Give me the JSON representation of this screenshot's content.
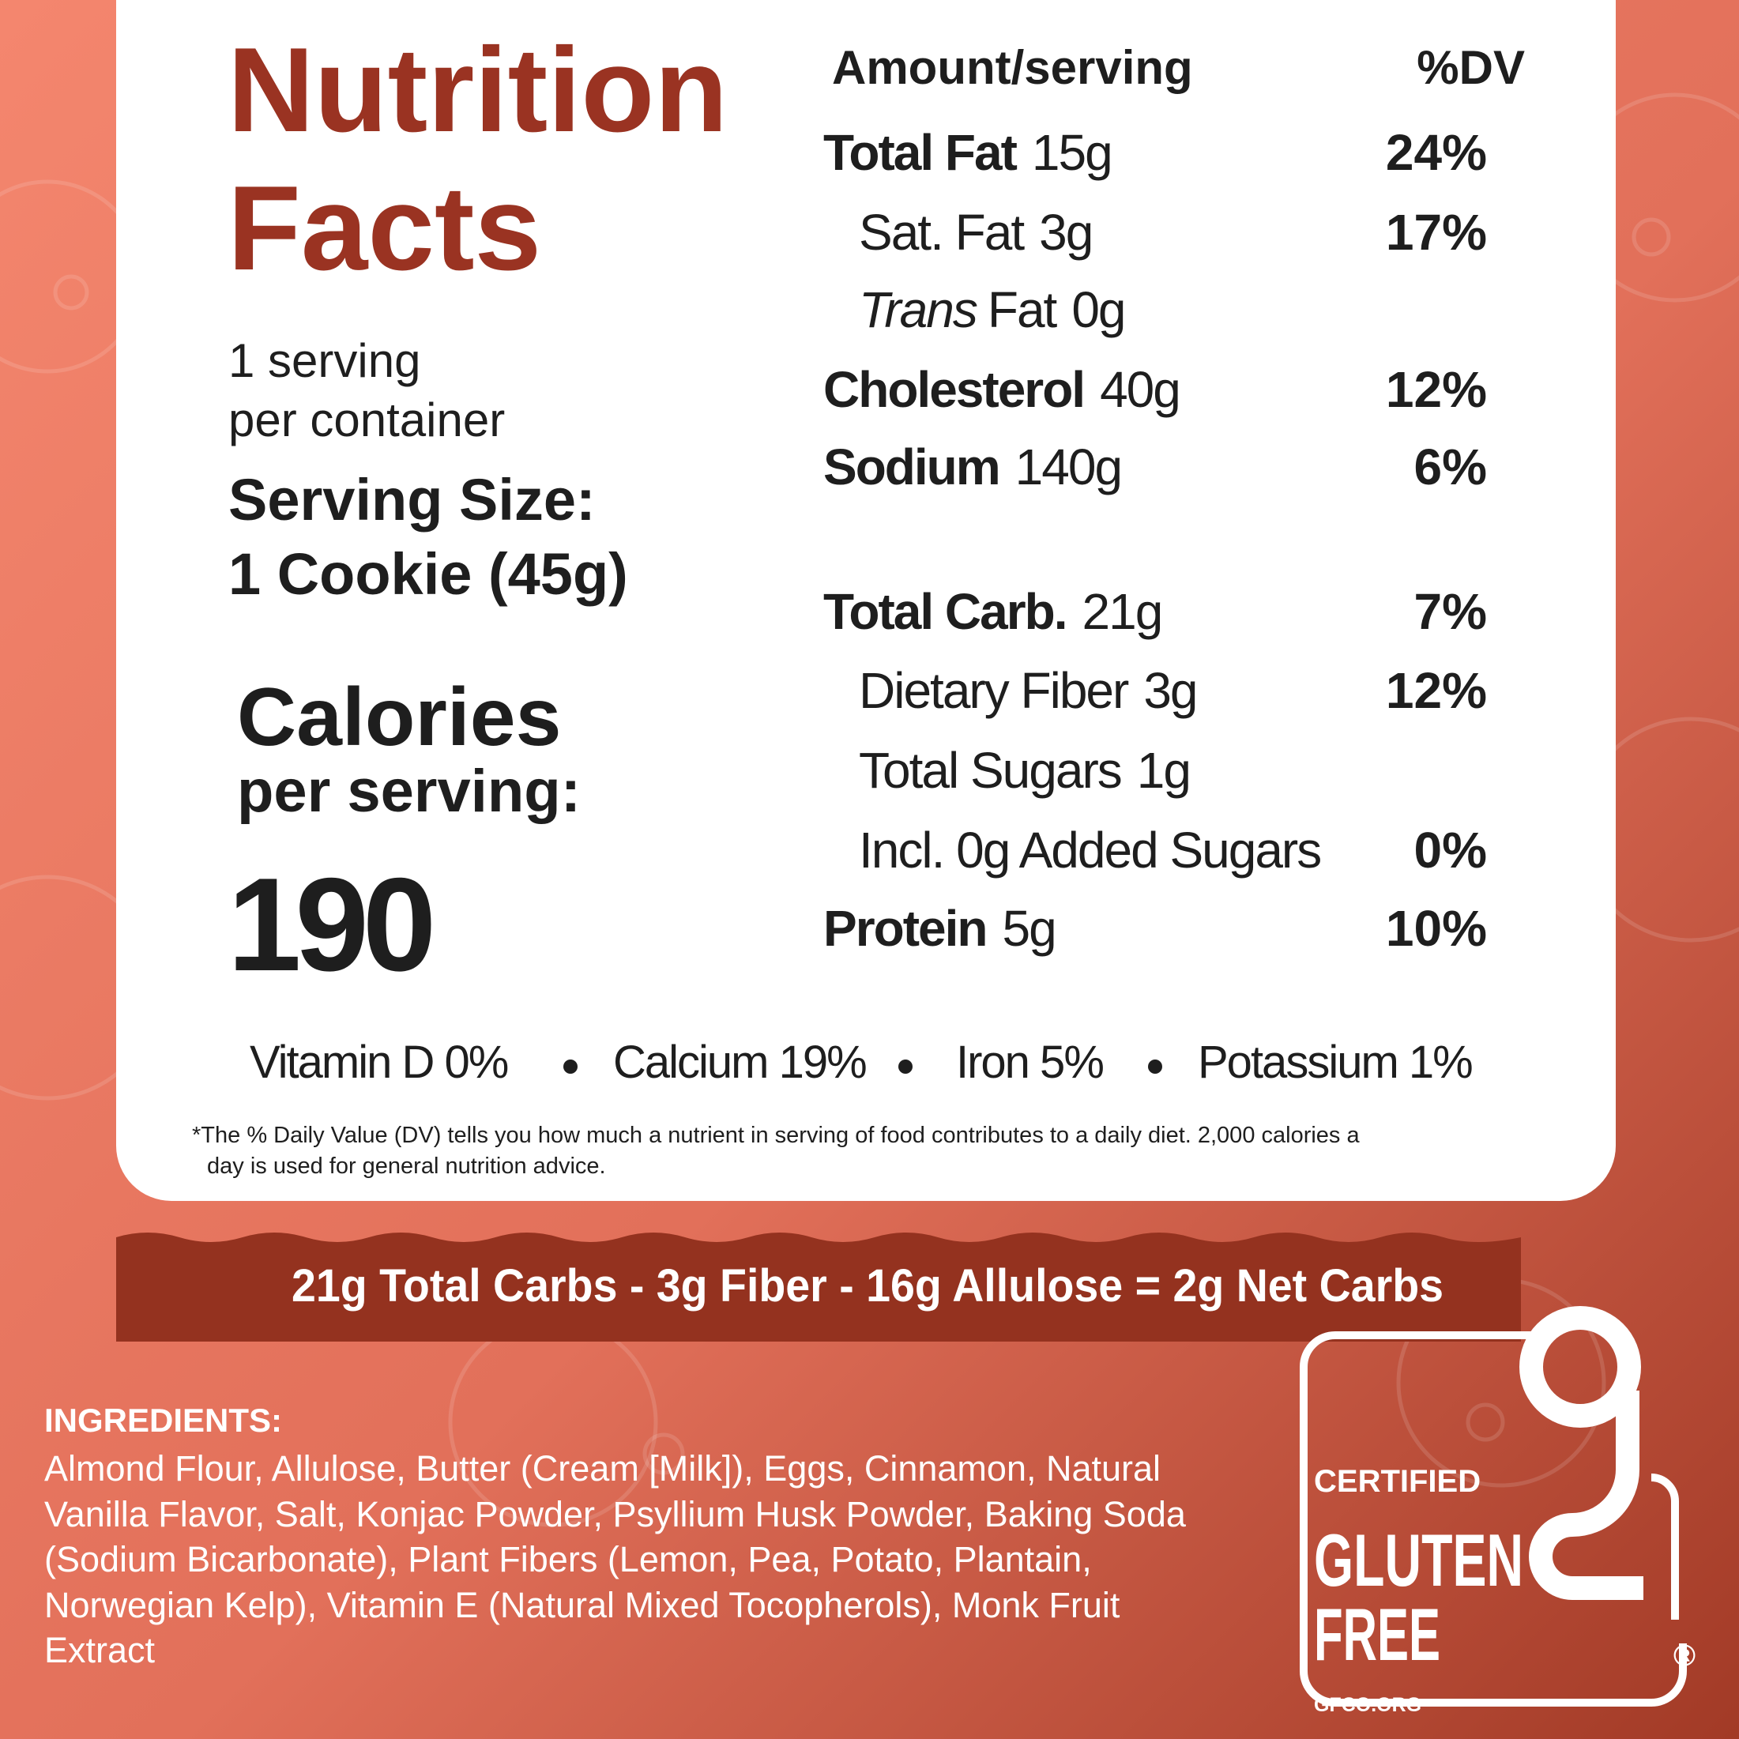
{
  "header": {
    "title": [
      "Nutrition",
      "Facts"
    ]
  },
  "serving": {
    "per_container": [
      "1 serving",
      "per container"
    ],
    "size": [
      "Serving Size:",
      "1 Cookie (45g)"
    ]
  },
  "calories": {
    "label": [
      "Calories",
      "per serving:"
    ],
    "value": "190"
  },
  "columns": {
    "amount": "Amount/serving",
    "dv": "%DV"
  },
  "nutrients": [
    {
      "label": "Total Fat",
      "amount": "15g",
      "dv": "24%"
    },
    {
      "label": "Sat. Fat",
      "amount": "3g",
      "dv": "17%"
    },
    {
      "label_italic": "Trans",
      "label": "Fat",
      "amount": "0g"
    },
    {
      "label": "Cholesterol",
      "amount": "40g",
      "dv": "12%"
    },
    {
      "label": "Sodium",
      "amount": "140g",
      "dv": "6%"
    },
    {
      "label": "Total Carb.",
      "amount": "21g",
      "dv": "7%"
    },
    {
      "label": "Dietary Fiber",
      "amount": "3g",
      "dv": "12%"
    },
    {
      "label": "Total Sugars",
      "amount": "1g"
    },
    {
      "label": "Incl. 0g Added Sugars",
      "dv": "0%"
    },
    {
      "label": "Protein",
      "amount": "5g",
      "dv": "10%"
    }
  ],
  "vitamins": [
    "Vitamin D 0%",
    "Calcium 19%",
    "Iron 5%",
    "Potassium 1%"
  ],
  "footnote": [
    "*The % Daily Value (DV) tells you how much a nutrient in serving of food contributes to a daily diet. 2,000 calories a",
    "day is used for general nutrition advice."
  ],
  "banner": "21g  Total Carbs  -  3g Fiber -  16g Allulose = 2g Net Carbs",
  "ingredients": {
    "heading": "INGREDIENTS:",
    "lines": [
      "Almond Flour, Allulose, Butter (Cream [Milk]), Eggs, Cinnamon, Natural",
      "Vanilla Flavor, Salt, Konjac Powder, Psyllium Husk Powder, Baking Soda",
      "(Sodium Bicarbonate), Plant Fibers (Lemon, Pea, Potato, Plantain,",
      "Norwegian Kelp), Vitamin E (Natural Mixed Tocopherols), Monk Fruit",
      "Extract"
    ]
  },
  "badge": {
    "top": "CERTIFIED",
    "line1": "GLUTEN",
    "line2": "FREE",
    "mark": "®",
    "url": "GFCO.ORG"
  }
}
